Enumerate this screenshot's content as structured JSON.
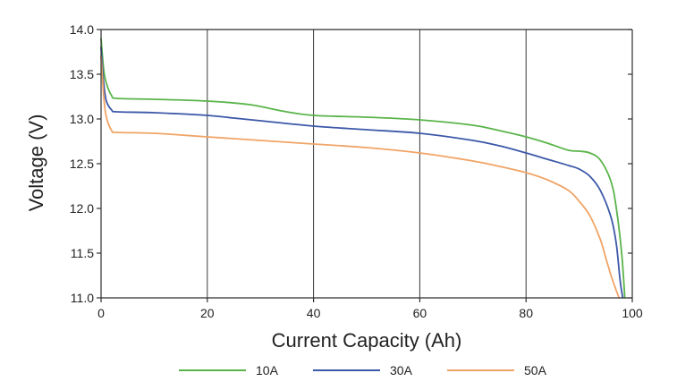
{
  "chart_data": {
    "type": "line",
    "title": "",
    "xlabel": "Current Capacity (Ah)",
    "ylabel": "Voltage (V)",
    "xlim": [
      0,
      100
    ],
    "ylim": [
      11.0,
      14.0
    ],
    "xticks": [
      0,
      20,
      40,
      60,
      80,
      100
    ],
    "xtick_labels": [
      "0",
      "20",
      "40",
      "60",
      "80",
      "100"
    ],
    "yticks": [
      11.0,
      11.5,
      12.0,
      12.5,
      13.0,
      13.5,
      14.0
    ],
    "ytick_labels": [
      "11.0",
      "11.5",
      "12.0",
      "12.5",
      "13.0",
      "13.5",
      "14.0"
    ],
    "grid": {
      "x": true,
      "y": false
    },
    "legend_position": "bottom",
    "series": [
      {
        "name": "10A",
        "color": "#5ab44a",
        "points": [
          [
            0,
            13.9
          ],
          [
            0.5,
            13.55
          ],
          [
            1,
            13.4
          ],
          [
            2,
            13.26
          ],
          [
            3,
            13.23
          ],
          [
            10,
            13.22
          ],
          [
            20,
            13.2
          ],
          [
            28,
            13.16
          ],
          [
            34,
            13.09
          ],
          [
            40,
            13.04
          ],
          [
            50,
            13.02
          ],
          [
            60,
            12.99
          ],
          [
            70,
            12.93
          ],
          [
            75,
            12.87
          ],
          [
            80,
            12.8
          ],
          [
            84,
            12.73
          ],
          [
            88,
            12.65
          ],
          [
            90,
            12.64
          ],
          [
            92,
            12.62
          ],
          [
            94,
            12.54
          ],
          [
            96,
            12.3
          ],
          [
            97,
            12.0
          ],
          [
            98,
            11.5
          ],
          [
            98.6,
            11.0
          ]
        ]
      },
      {
        "name": "30A",
        "color": "#3c58a8",
        "points": [
          [
            0,
            13.8
          ],
          [
            0.5,
            13.4
          ],
          [
            1,
            13.2
          ],
          [
            2,
            13.1
          ],
          [
            3,
            13.08
          ],
          [
            10,
            13.07
          ],
          [
            20,
            13.04
          ],
          [
            25,
            13.01
          ],
          [
            30,
            12.98
          ],
          [
            40,
            12.92
          ],
          [
            50,
            12.88
          ],
          [
            60,
            12.84
          ],
          [
            70,
            12.76
          ],
          [
            75,
            12.7
          ],
          [
            80,
            12.62
          ],
          [
            84,
            12.55
          ],
          [
            88,
            12.48
          ],
          [
            90,
            12.44
          ],
          [
            92,
            12.36
          ],
          [
            94,
            12.2
          ],
          [
            96,
            11.9
          ],
          [
            97,
            11.6
          ],
          [
            97.7,
            11.2
          ],
          [
            98.2,
            11.0
          ]
        ]
      },
      {
        "name": "50A",
        "color": "#f0a466",
        "points": [
          [
            0,
            13.7
          ],
          [
            0.5,
            13.25
          ],
          [
            1,
            13.02
          ],
          [
            2,
            12.87
          ],
          [
            3,
            12.85
          ],
          [
            10,
            12.84
          ],
          [
            20,
            12.8
          ],
          [
            30,
            12.76
          ],
          [
            40,
            12.72
          ],
          [
            50,
            12.68
          ],
          [
            60,
            12.62
          ],
          [
            70,
            12.53
          ],
          [
            75,
            12.47
          ],
          [
            80,
            12.4
          ],
          [
            84,
            12.32
          ],
          [
            88,
            12.2
          ],
          [
            90,
            12.08
          ],
          [
            92,
            11.92
          ],
          [
            94,
            11.65
          ],
          [
            95,
            11.45
          ],
          [
            96,
            11.25
          ],
          [
            97,
            11.08
          ],
          [
            97.5,
            11.0
          ]
        ]
      }
    ]
  }
}
